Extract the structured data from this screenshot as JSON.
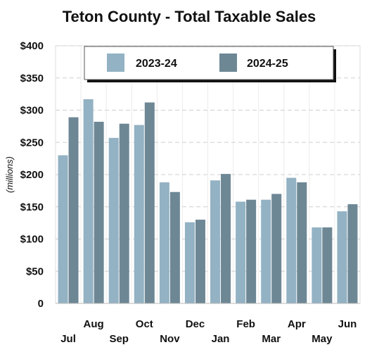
{
  "chart_data": {
    "type": "bar",
    "title": "Teton County - Total Taxable Sales",
    "xlabel": "",
    "ylabel": "(millions)",
    "ylim": [
      0,
      400
    ],
    "yticks": [
      0,
      50,
      100,
      150,
      200,
      250,
      300,
      350,
      400
    ],
    "ytick_labels": [
      "0",
      "$50",
      "$100",
      "$150",
      "$200",
      "$250",
      "$300",
      "$350",
      "$400"
    ],
    "categories": [
      "Jul",
      "Aug",
      "Sep",
      "Oct",
      "Nov",
      "Dec",
      "Jan",
      "Feb",
      "Mar",
      "Apr",
      "May",
      "Jun"
    ],
    "series": [
      {
        "name": "2023-24",
        "color": "#93b2c3",
        "values": [
          230,
          317,
          257,
          277,
          188,
          126,
          191,
          158,
          161,
          195,
          118,
          143
        ]
      },
      {
        "name": "2024-25",
        "color": "#6e8795",
        "values": [
          289,
          282,
          279,
          312,
          173,
          130,
          201,
          161,
          170,
          188,
          118,
          154
        ]
      }
    ],
    "legend_position": "top",
    "grid": "horizontal dashed"
  }
}
